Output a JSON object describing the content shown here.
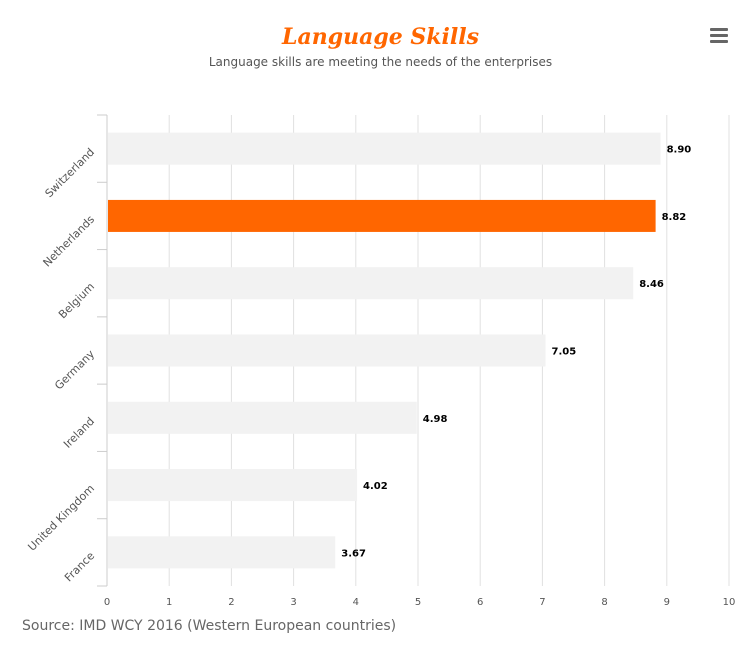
{
  "title": "Language Skills",
  "subtitle": "Language skills are meeting the needs of the enterprises",
  "source": "Source: IMD WCY 2016 (Western European countries)",
  "menu_icon": "hamburger-menu-icon",
  "colors": {
    "bar": "#f2f2f2",
    "highlight": "#ff6600",
    "grid": "#e0e0e0"
  },
  "chart_data": {
    "type": "bar",
    "orientation": "horizontal",
    "categories": [
      "Switzerland",
      "Netherlands",
      "Belgium",
      "Germany",
      "Ireland",
      "United Kingdom",
      "France"
    ],
    "values": [
      8.9,
      8.82,
      8.46,
      7.05,
      4.98,
      4.02,
      3.67
    ],
    "data_labels": [
      "8.90",
      "8.82",
      "8.46",
      "7.05",
      "4.98",
      "4.02",
      "3.67"
    ],
    "highlight": "Netherlands",
    "xlim": [
      0,
      10
    ],
    "xticks": [
      "0",
      "1",
      "2",
      "3",
      "4",
      "5",
      "6",
      "7",
      "8",
      "9",
      "10"
    ],
    "grid": true,
    "legend": "none"
  }
}
